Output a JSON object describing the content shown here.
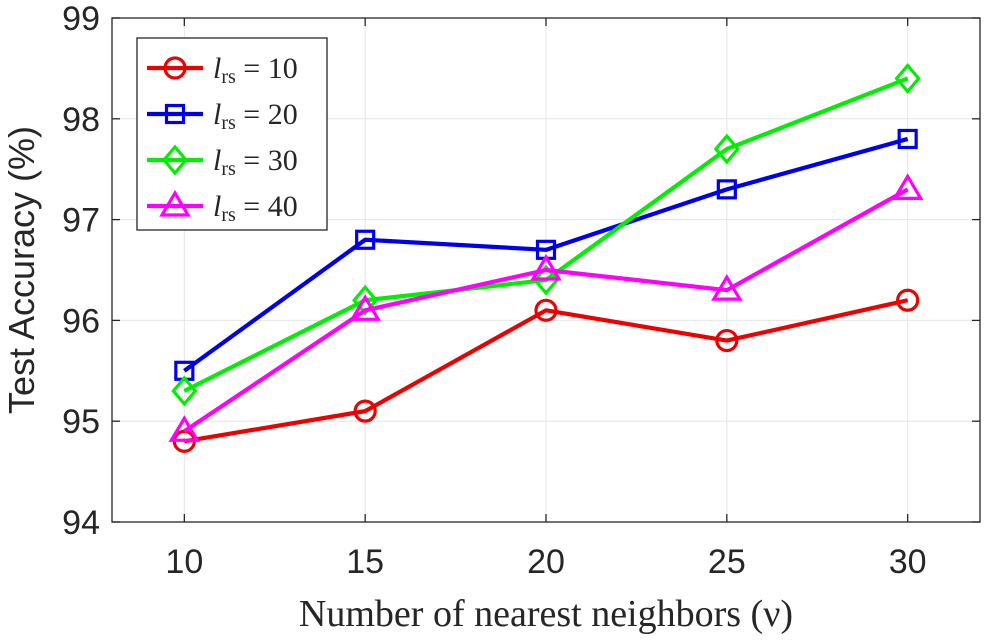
{
  "chart_data": {
    "type": "line",
    "title": "",
    "xlabel": "Number of nearest neighbors (ν)",
    "ylabel": "Test Accuracy (%)",
    "x": [
      10,
      15,
      20,
      25,
      30
    ],
    "xlim": [
      8,
      32
    ],
    "ylim": [
      94,
      99
    ],
    "xticks": [
      "10",
      "15",
      "20",
      "25",
      "30"
    ],
    "yticks": [
      "94",
      "95",
      "96",
      "97",
      "98",
      "99"
    ],
    "grid": true,
    "legend_position": "top-left",
    "series": [
      {
        "name": "l_rs = 10",
        "symbol": "l",
        "subscript": "rs",
        "value_text": " = 10",
        "marker": "circle",
        "color": "#ee0000",
        "values": [
          94.8,
          95.1,
          96.1,
          95.8,
          96.2
        ]
      },
      {
        "name": "l_rs = 20",
        "symbol": "l",
        "subscript": "rs",
        "value_text": " = 20",
        "marker": "square",
        "color": "#0000ee",
        "values": [
          95.5,
          96.8,
          96.7,
          97.3,
          97.8
        ]
      },
      {
        "name": "l_rs = 30",
        "symbol": "l",
        "subscript": "rs",
        "value_text": " = 30",
        "marker": "diamond",
        "color": "#00ee00",
        "values": [
          95.3,
          96.2,
          96.4,
          97.7,
          98.4
        ]
      },
      {
        "name": "l_rs = 40",
        "symbol": "l",
        "subscript": "rs",
        "value_text": " = 40",
        "marker": "triangle",
        "color": "#ff00ff",
        "values": [
          94.9,
          96.1,
          96.5,
          96.3,
          97.3
        ]
      }
    ]
  }
}
